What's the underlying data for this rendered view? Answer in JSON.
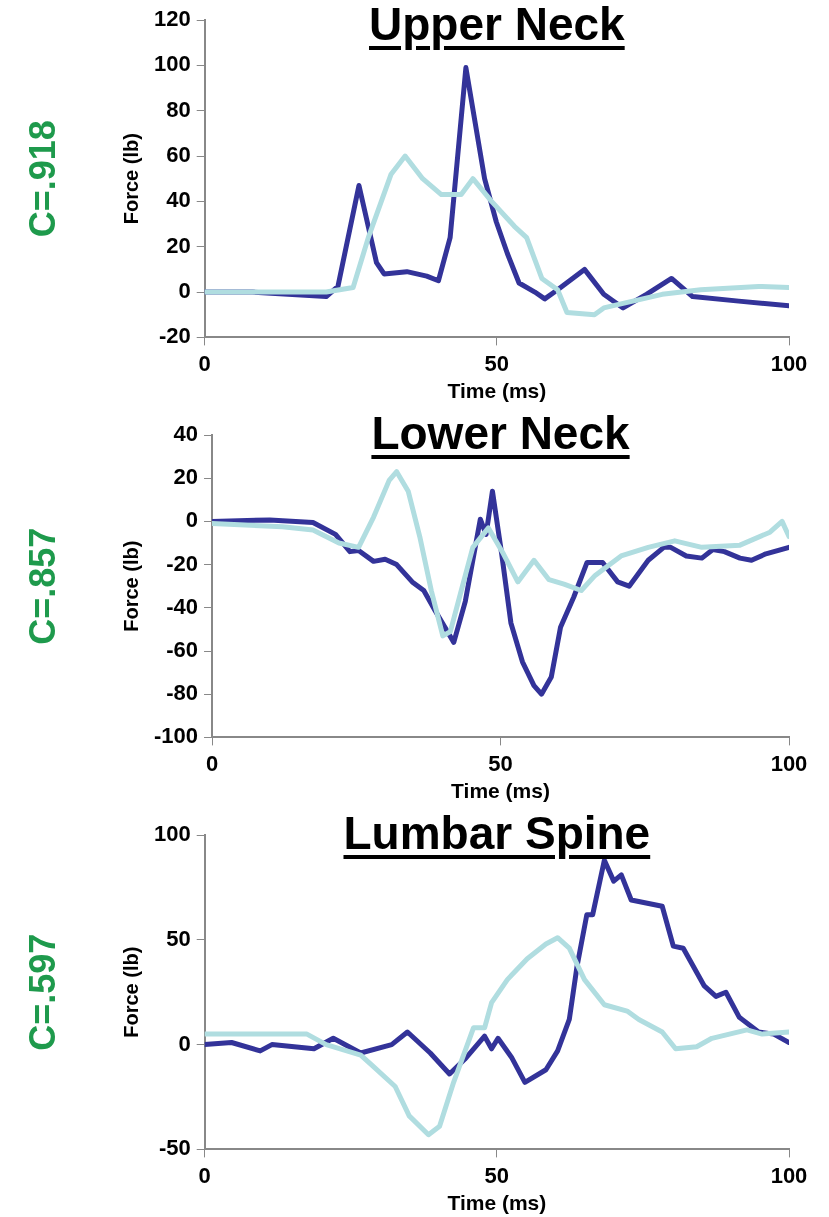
{
  "chart_data": [
    {
      "type": "line",
      "title": "Upper Neck",
      "xlabel": "Time (ms)",
      "ylabel": "Force (lb)",
      "annotations": [
        "C=.918"
      ],
      "xlim": [
        0,
        100
      ],
      "ylim": [
        -20,
        120
      ],
      "xticks": [
        0,
        50,
        100
      ],
      "yticks": [
        -20,
        0,
        20,
        40,
        60,
        80,
        100,
        120
      ],
      "grid": false,
      "series": [
        {
          "color": "#b0dde0",
          "x": [
            0,
            20.8,
            25.4,
            28,
            31.9,
            34.3,
            37.3,
            40.5,
            43.9,
            45.9,
            49.1,
            53,
            55.1,
            57.7,
            60.4,
            62,
            66.7,
            68.3,
            71.6,
            78.3,
            84.9,
            94.8,
            100
          ],
          "values": [
            0,
            0,
            2,
            24,
            52,
            60,
            50,
            43,
            43,
            50,
            40,
            29,
            24,
            6,
            1,
            -9,
            -10,
            -7,
            -5,
            -1,
            1,
            2.5,
            2
          ]
        },
        {
          "color": "#333399",
          "x": [
            0,
            8.2,
            20.8,
            22.8,
            26.4,
            29.4,
            30.7,
            34.6,
            38,
            40,
            42,
            44.7,
            47.9,
            49.9,
            51.8,
            53.8,
            56.5,
            58.2,
            60.4,
            65,
            68.3,
            71.6,
            75.6,
            79.9,
            83.5,
            91.4,
            100
          ],
          "values": [
            0,
            0,
            -2,
            2.5,
            47,
            13,
            8,
            9,
            7,
            5,
            24,
            99,
            50,
            31,
            17,
            4,
            0,
            -3,
            1,
            10,
            -1,
            -7,
            -1,
            6,
            -2,
            -4,
            -6
          ]
        }
      ]
    },
    {
      "type": "line",
      "title": "Lower Neck",
      "xlabel": "Time (ms)",
      "ylabel": "Force (lb)",
      "annotations": [
        "C=.857"
      ],
      "xlim": [
        0,
        100
      ],
      "ylim": [
        -100,
        40
      ],
      "xticks": [
        0,
        50,
        100
      ],
      "yticks": [
        -100,
        -80,
        -60,
        -40,
        -20,
        0,
        20,
        40
      ],
      "grid": false,
      "series": [
        {
          "color": "#b0dde0",
          "x": [
            0,
            12.2,
            17.5,
            22,
            25.4,
            28,
            30.7,
            32,
            34,
            36,
            38,
            40,
            41.3,
            43.2,
            45.2,
            47.9,
            50.5,
            53,
            55.8,
            58.4,
            61,
            64,
            66.4,
            70.9,
            75.6,
            80.2,
            84.9,
            91.5,
            96.7,
            98.8,
            100
          ],
          "values": [
            -1,
            -2.5,
            -4,
            -10,
            -12,
            2,
            19,
            23,
            14,
            -7,
            -32,
            -53,
            -51,
            -32,
            -12,
            -3,
            -15,
            -28,
            -18,
            -27,
            -29,
            -32,
            -25,
            -16,
            -12,
            -9,
            -12,
            -11,
            -5,
            0,
            -7
          ]
        },
        {
          "color": "#333399",
          "x": [
            0,
            10,
            17.5,
            21.4,
            23.9,
            25.4,
            28,
            30,
            32,
            34.7,
            36.7,
            38.6,
            41.9,
            43.9,
            46.5,
            47.5,
            48.6,
            50.2,
            51.8,
            53.8,
            55.8,
            57.1,
            58.8,
            60.4,
            62.7,
            65,
            67.7,
            70.3,
            72.3,
            75.6,
            78.3,
            79.5,
            82.2,
            84.9,
            86.8,
            88.8,
            91.5,
            93.5,
            96,
            100
          ],
          "values": [
            0,
            0.7,
            -0.5,
            -6,
            -14,
            -13.5,
            -18.5,
            -17.5,
            -20,
            -28,
            -32,
            -41,
            -56,
            -37,
            1,
            -6,
            14,
            -15,
            -47,
            -65,
            -76,
            -80,
            -72,
            -49,
            -35,
            -19,
            -19,
            -28,
            -30,
            -18,
            -12,
            -12,
            -16,
            -17,
            -13,
            -14,
            -17,
            -18,
            -15,
            -12
          ]
        }
      ]
    },
    {
      "type": "line",
      "title": "Lumbar Spine",
      "xlabel": "Time (ms)",
      "ylabel": "Force (lb)",
      "annotations": [
        "C=.597"
      ],
      "xlim": [
        0,
        100
      ],
      "ylim": [
        -50,
        100
      ],
      "xticks": [
        0,
        50,
        100
      ],
      "yticks": [
        -50,
        0,
        50,
        100
      ],
      "grid": false,
      "series": [
        {
          "color": "#b0dde0",
          "x": [
            0,
            17.5,
            20.8,
            26.7,
            28.7,
            32.6,
            35,
            38.3,
            40.2,
            42.6,
            46,
            47.9,
            49.1,
            51.8,
            55.2,
            58.4,
            60.4,
            62.4,
            65,
            68.4,
            72.3,
            74.3,
            78.3,
            80.6,
            84.2,
            86.8,
            92.8,
            95.4,
            100
          ],
          "values": [
            5,
            5,
            0,
            -5,
            -10,
            -20,
            -34,
            -43,
            -39,
            -18,
            8,
            8,
            20,
            31,
            41,
            48,
            51,
            46,
            31,
            19,
            16,
            12,
            6,
            -2,
            -1,
            3,
            7,
            5,
            6
          ]
        },
        {
          "color": "#333399",
          "x": [
            0,
            4.6,
            9.5,
            11.5,
            18.7,
            22,
            26.7,
            32,
            34.7,
            38.6,
            41.9,
            44.5,
            47.9,
            49.1,
            50.2,
            52.5,
            54.8,
            58.4,
            60.4,
            62.4,
            63.7,
            65.4,
            66.4,
            68.4,
            70,
            71.3,
            73,
            78.3,
            80.2,
            81.9,
            85.5,
            87.5,
            89.2,
            91.5,
            94.8,
            97.4,
            100
          ],
          "values": [
            0,
            1,
            -3,
            0,
            -2,
            3,
            -4,
            0,
            6,
            -4,
            -14,
            -7,
            4,
            -2,
            3,
            -6,
            -18,
            -12,
            -3,
            12,
            37,
            62,
            62,
            88,
            78,
            81,
            69,
            66,
            47,
            46,
            28,
            23,
            25,
            13,
            6,
            5,
            1
          ]
        }
      ]
    }
  ]
}
